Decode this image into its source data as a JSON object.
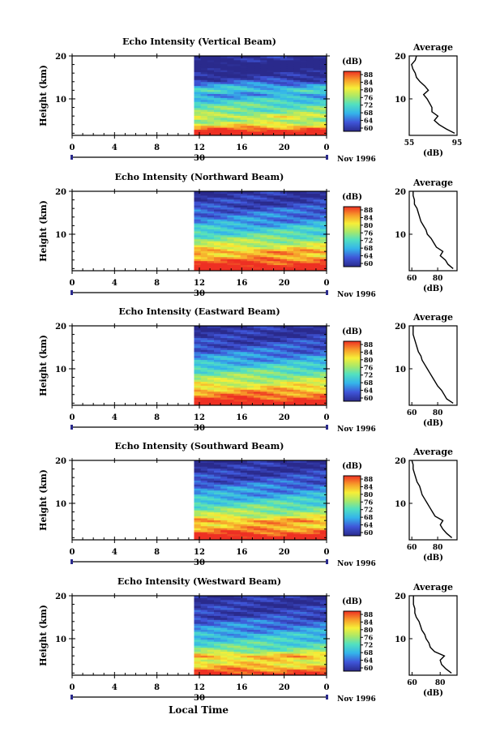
{
  "figure": {
    "xlabel": "Local Time",
    "date_label": "Nov 1996",
    "day_label": "30",
    "x_ticks": [
      "0",
      "4",
      "8",
      "12",
      "16",
      "20",
      "0"
    ],
    "y_ticks": [
      "20",
      "10"
    ],
    "ylabel": "Height (km)",
    "colorbar_unit": "(dB)",
    "colorbar_ticks": [
      "60",
      "64",
      "68",
      "72",
      "76",
      "80",
      "84",
      "88"
    ],
    "avg_title": "Average",
    "avg_xlabel": "(dB)",
    "avg_y_ticks": [
      "20",
      "10"
    ]
  },
  "chart_data": [
    {
      "type": "heatmap",
      "title": "Echo Intensity (Vertical Beam)",
      "x_range_hours": [
        0,
        24
      ],
      "data_start_hour": 11.5,
      "y_range_km": [
        1.5,
        20
      ],
      "color_range_db": [
        60,
        88
      ],
      "profile": {
        "type": "line",
        "xlabel": "(dB)",
        "x_ticks": [
          "55",
          "95"
        ],
        "x_range": [
          55,
          95
        ],
        "height_km": [
          2,
          3,
          4,
          5,
          6,
          7,
          8,
          9,
          10,
          11,
          12,
          13,
          14,
          15,
          16,
          17,
          18,
          19,
          20
        ],
        "db": [
          93,
          86,
          80,
          76,
          79,
          74,
          74,
          72,
          70,
          67,
          71,
          68,
          64,
          61,
          60,
          58,
          57,
          60,
          61
        ]
      }
    },
    {
      "type": "heatmap",
      "title": "Echo Intensity (Northward Beam)",
      "x_range_hours": [
        0,
        24
      ],
      "data_start_hour": 11.5,
      "y_range_km": [
        1.5,
        20
      ],
      "color_range_db": [
        60,
        88
      ],
      "profile": {
        "type": "line",
        "xlabel": "(dB)",
        "x_ticks": [
          "60",
          "80"
        ],
        "x_range": [
          58,
          95
        ],
        "height_km": [
          2,
          3,
          4,
          5,
          6,
          7,
          8,
          9,
          10,
          11,
          12,
          13,
          14,
          15,
          16,
          17,
          18,
          19,
          20
        ],
        "db": [
          92,
          88,
          86,
          82,
          84,
          79,
          77,
          75,
          72,
          71,
          69,
          67,
          66,
          65,
          64,
          62,
          62,
          61,
          61
        ]
      }
    },
    {
      "type": "heatmap",
      "title": "Echo Intensity (Eastward Beam)",
      "x_range_hours": [
        0,
        24
      ],
      "data_start_hour": 11.5,
      "y_range_km": [
        1.5,
        20
      ],
      "color_range_db": [
        60,
        88
      ],
      "profile": {
        "type": "line",
        "xlabel": "(dB)",
        "x_ticks": [
          "60",
          "80"
        ],
        "x_range": [
          58,
          95
        ],
        "height_km": [
          2,
          3,
          4,
          5,
          6,
          7,
          8,
          9,
          10,
          11,
          12,
          13,
          14,
          15,
          16,
          17,
          18,
          19,
          20
        ],
        "db": [
          92,
          87,
          85,
          83,
          80,
          78,
          76,
          74,
          72,
          70,
          68,
          67,
          65,
          64,
          63,
          62,
          61,
          61,
          61
        ]
      }
    },
    {
      "type": "heatmap",
      "title": "Echo Intensity (Southward Beam)",
      "x_range_hours": [
        0,
        24
      ],
      "data_start_hour": 11.5,
      "y_range_km": [
        1.5,
        20
      ],
      "color_range_db": [
        60,
        88
      ],
      "profile": {
        "type": "line",
        "xlabel": "(dB)",
        "x_ticks": [
          "60",
          "80"
        ],
        "x_range": [
          58,
          95
        ],
        "height_km": [
          2,
          3,
          4,
          5,
          6,
          7,
          8,
          9,
          10,
          11,
          12,
          13,
          14,
          15,
          16,
          17,
          18,
          19,
          20
        ],
        "db": [
          91,
          87,
          84,
          82,
          84,
          78,
          76,
          74,
          72,
          70,
          68,
          67,
          66,
          64,
          63,
          62,
          61,
          61,
          60
        ]
      }
    },
    {
      "type": "heatmap",
      "title": "Echo Intensity (Westward Beam)",
      "x_range_hours": [
        0,
        24
      ],
      "data_start_hour": 11.5,
      "y_range_km": [
        1.5,
        20
      ],
      "color_range_db": [
        60,
        88
      ],
      "profile": {
        "type": "line",
        "xlabel": "(dB)",
        "x_ticks": [
          "60",
          "80"
        ],
        "x_range": [
          58,
          92
        ],
        "height_km": [
          2,
          3,
          4,
          5,
          6,
          7,
          8,
          9,
          10,
          11,
          12,
          13,
          14,
          15,
          16,
          17,
          18,
          19,
          20
        ],
        "db": [
          88,
          84,
          81,
          80,
          83,
          76,
          73,
          72,
          70,
          69,
          67,
          66,
          65,
          63,
          62,
          62,
          61,
          61,
          61
        ]
      }
    }
  ]
}
